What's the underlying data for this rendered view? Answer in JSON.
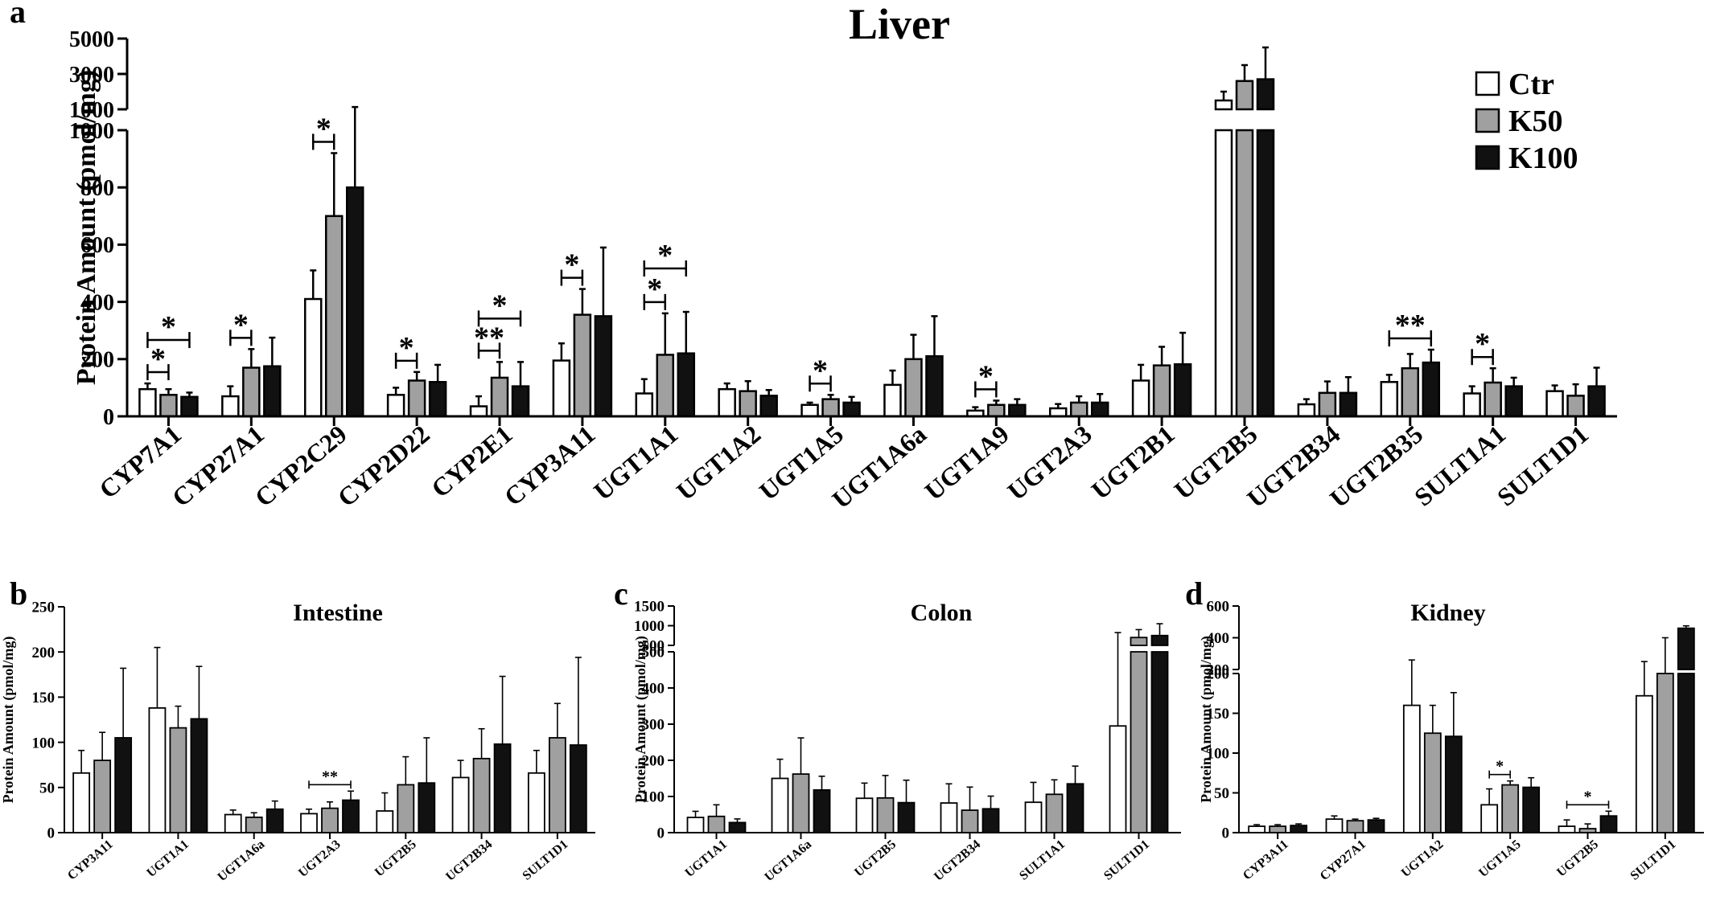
{
  "figure": {
    "series_colors": {
      "Ctr": "#ffffff",
      "K50": "#a0a0a0",
      "K100": "#111111"
    }
  },
  "chart_data": [
    {
      "panel_label": "a",
      "type": "bar",
      "title": "Liver",
      "ylabel": "Protein Amount (pmol/mg)",
      "xlabel": "",
      "axis_break": {
        "lower": [
          0,
          1000
        ],
        "upper": [
          1000,
          5000
        ]
      },
      "yticks_lower": [
        "0",
        "200",
        "400",
        "600",
        "800",
        "1000"
      ],
      "yticks_upper": [
        "1000",
        "3000",
        "5000"
      ],
      "legend": {
        "position": "top-right",
        "entries": [
          "Ctr",
          "K50",
          "K100"
        ]
      },
      "categories": [
        "CYP7A1",
        "CYP27A1",
        "CYP2C29",
        "CYP2D22",
        "CYP2E1",
        "CYP3A11",
        "UGT1A1",
        "UGT1A2",
        "UGT1A5",
        "UGT1A6a",
        "UGT1A9",
        "UGT2A3",
        "UGT2B1",
        "UGT2B5",
        "UGT2B34",
        "UGT2B35",
        "SULT1A1",
        "SULT1D1"
      ],
      "series": [
        {
          "name": "Ctr",
          "values": [
            95,
            70,
            410,
            75,
            35,
            195,
            80,
            95,
            40,
            110,
            20,
            28,
            125,
            1500,
            42,
            120,
            80,
            88
          ],
          "errors": [
            20,
            35,
            100,
            25,
            35,
            60,
            50,
            20,
            8,
            50,
            12,
            15,
            55,
            500,
            18,
            25,
            25,
            20
          ]
        },
        {
          "name": "K50",
          "values": [
            75,
            170,
            700,
            125,
            135,
            355,
            215,
            88,
            60,
            200,
            40,
            48,
            178,
            2600,
            82,
            168,
            118,
            72
          ]
        },
        {
          "name": "K100",
          "values": [
            68,
            175,
            800,
            120,
            105,
            350,
            220,
            72,
            48,
            210,
            40,
            48,
            182,
            2700,
            82,
            188,
            105,
            105
          ]
        }
      ],
      "series_errors_up": {
        "K50": [
          20,
          65,
          220,
          30,
          55,
          90,
          145,
          35,
          15,
          85,
          15,
          22,
          65,
          900,
          40,
          50,
          50,
          40
        ],
        "K100": [
          15,
          100,
          330,
          60,
          85,
          240,
          145,
          20,
          20,
          140,
          20,
          30,
          110,
          1800,
          55,
          45,
          30,
          65
        ]
      },
      "significance": [
        {
          "label": "*",
          "from": [
            "CYP7A1",
            "Ctr"
          ],
          "to": [
            "CYP7A1",
            "K50"
          ]
        },
        {
          "label": "*",
          "from": [
            "CYP7A1",
            "Ctr"
          ],
          "to": [
            "CYP7A1",
            "K100"
          ]
        },
        {
          "label": "*",
          "from": [
            "CYP27A1",
            "Ctr"
          ],
          "to": [
            "CYP27A1",
            "K50"
          ]
        },
        {
          "label": "*",
          "from": [
            "CYP2C29",
            "Ctr"
          ],
          "to": [
            "CYP2C29",
            "K50"
          ]
        },
        {
          "label": "*",
          "from": [
            "CYP2D22",
            "Ctr"
          ],
          "to": [
            "CYP2D22",
            "K50"
          ]
        },
        {
          "label": "**",
          "from": [
            "CYP2E1",
            "Ctr"
          ],
          "to": [
            "CYP2E1",
            "K50"
          ]
        },
        {
          "label": "*",
          "from": [
            "CYP2E1",
            "Ctr"
          ],
          "to": [
            "CYP2E1",
            "K100"
          ]
        },
        {
          "label": "*",
          "from": [
            "CYP3A11",
            "Ctr"
          ],
          "to": [
            "CYP3A11",
            "K50"
          ]
        },
        {
          "label": "*",
          "from": [
            "UGT1A1",
            "Ctr"
          ],
          "to": [
            "UGT1A1",
            "K50"
          ]
        },
        {
          "label": "*",
          "from": [
            "UGT1A1",
            "Ctr"
          ],
          "to": [
            "UGT1A1",
            "K100"
          ]
        },
        {
          "label": "*",
          "from": [
            "UGT1A5",
            "Ctr"
          ],
          "to": [
            "UGT1A5",
            "K50"
          ]
        },
        {
          "label": "*",
          "from": [
            "UGT1A9",
            "Ctr"
          ],
          "to": [
            "UGT1A9",
            "K50"
          ]
        },
        {
          "label": "**",
          "from": [
            "UGT2B35",
            "Ctr"
          ],
          "to": [
            "UGT2B35",
            "K100"
          ]
        },
        {
          "label": "*",
          "from": [
            "SULT1A1",
            "Ctr"
          ],
          "to": [
            "SULT1A1",
            "K50"
          ]
        }
      ]
    },
    {
      "panel_label": "b",
      "type": "bar",
      "title": "Intestine",
      "ylabel": "Protein Amount (pmol/mg)",
      "xlabel": "",
      "ylim": [
        0,
        250
      ],
      "yticks": [
        "0",
        "50",
        "100",
        "150",
        "200",
        "250"
      ],
      "categories": [
        "CYP3A11",
        "UGT1A1",
        "UGT1A6a",
        "UGT2A3",
        "UGT2B5",
        "UGT2B34",
        "SULT1D1"
      ],
      "series": [
        {
          "name": "Ctr",
          "values": [
            66,
            138,
            20,
            21,
            24,
            61,
            66
          ],
          "errors": [
            25,
            67,
            5,
            5,
            20,
            19,
            25
          ]
        },
        {
          "name": "K50",
          "values": [
            80,
            116,
            17,
            27,
            53,
            82,
            105
          ],
          "errors": [
            31,
            24,
            5,
            7,
            31,
            33,
            38
          ]
        },
        {
          "name": "K100",
          "values": [
            105,
            126,
            26,
            36,
            55,
            98,
            97
          ],
          "errors": [
            77,
            58,
            9,
            10,
            50,
            75,
            97
          ]
        }
      ],
      "significance": [
        {
          "label": "**",
          "from": [
            "UGT2A3",
            "Ctr"
          ],
          "to": [
            "UGT2A3",
            "K100"
          ]
        }
      ]
    },
    {
      "panel_label": "c",
      "type": "bar",
      "title": "Colon",
      "ylabel": "Protein Amount (pmol/mg)",
      "xlabel": "",
      "axis_break": {
        "lower": [
          0,
          500
        ],
        "upper": [
          500,
          1500
        ]
      },
      "yticks_lower": [
        "0",
        "100",
        "200",
        "300",
        "400",
        "500"
      ],
      "yticks_upper": [
        "500",
        "1000",
        "1500"
      ],
      "categories": [
        "UGT1A1",
        "UGT1A6a",
        "UGT2B5",
        "UGT2B34",
        "SULT1A1",
        "SULT1D1"
      ],
      "series": [
        {
          "name": "Ctr",
          "values": [
            42,
            150,
            95,
            82,
            84,
            295
          ],
          "errors": [
            17,
            53,
            42,
            53,
            55,
            530
          ]
        },
        {
          "name": "K50",
          "values": [
            45,
            162,
            96,
            62,
            106,
            700
          ],
          "errors": [
            32,
            100,
            62,
            64,
            40,
            200
          ]
        },
        {
          "name": "K100",
          "values": [
            28,
            118,
            83,
            66,
            135,
            750
          ],
          "errors": [
            10,
            38,
            62,
            35,
            49,
            300
          ]
        }
      ]
    },
    {
      "panel_label": "d",
      "type": "bar",
      "title": "Kidney",
      "ylabel": "Protein Amount (pmol/mg)",
      "xlabel": "",
      "axis_break": {
        "lower": [
          0,
          200
        ],
        "upper": [
          200,
          600
        ]
      },
      "yticks_lower": [
        "0",
        "50",
        "100",
        "150",
        "200"
      ],
      "yticks_upper": [
        "200",
        "400",
        "600"
      ],
      "categories": [
        "CYP3A11",
        "CYP27A1",
        "UGT1A2",
        "UGT1A5",
        "UGT2B5",
        "SULT1D1"
      ],
      "series": [
        {
          "name": "Ctr",
          "values": [
            8,
            17,
            160,
            35,
            8,
            172
          ],
          "errors": [
            2,
            4,
            100,
            20,
            8,
            78
          ]
        },
        {
          "name": "K50",
          "values": [
            8,
            15,
            125,
            60,
            5,
            200
          ],
          "errors": [
            2,
            2,
            35,
            5,
            6,
            200
          ]
        },
        {
          "name": "K100",
          "values": [
            9,
            16,
            121,
            57,
            21,
            460
          ],
          "errors": [
            2,
            2,
            55,
            12,
            6,
            15
          ]
        }
      ],
      "significance": [
        {
          "label": "*",
          "from": [
            "UGT1A5",
            "Ctr"
          ],
          "to": [
            "UGT1A5",
            "K50"
          ]
        },
        {
          "label": "*",
          "from": [
            "UGT2B5",
            "Ctr"
          ],
          "to": [
            "UGT2B5",
            "K100"
          ]
        }
      ]
    }
  ]
}
